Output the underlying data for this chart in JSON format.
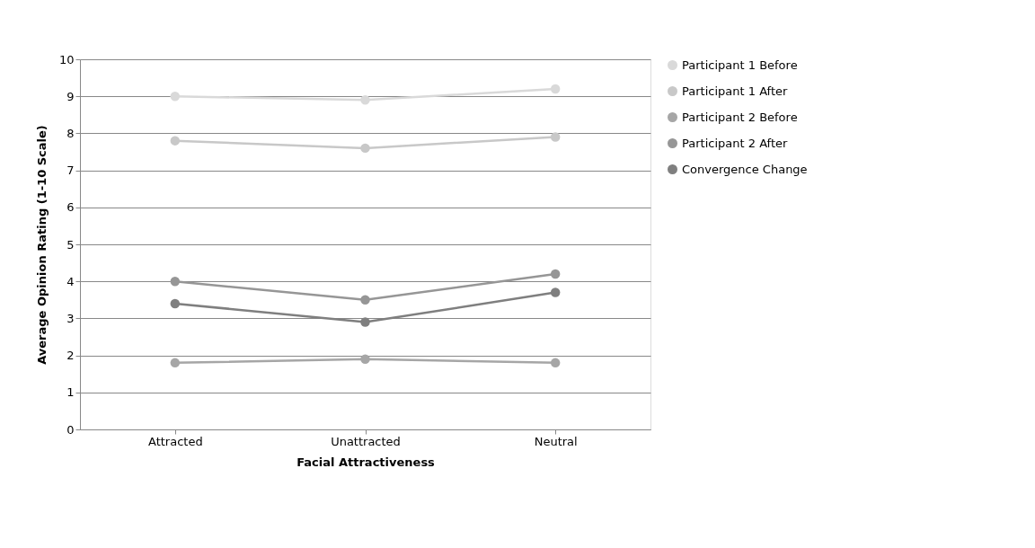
{
  "chart_data": {
    "type": "line",
    "xlabel": "Facial Attractiveness",
    "ylabel": "Average Opinion Rating (1-10 Scale)",
    "categories": [
      "Attracted",
      "Unattracted",
      "Neutral"
    ],
    "series": [
      {
        "name": "Participant 1 Before",
        "color": "#d9d9d9",
        "values": [
          9.0,
          8.9,
          9.2
        ]
      },
      {
        "name": "Participant 1 After",
        "color": "#c8c8c8",
        "values": [
          7.8,
          7.6,
          7.9
        ]
      },
      {
        "name": "Participant 2 Before",
        "color": "#a6a6a6",
        "values": [
          1.8,
          1.9,
          1.8
        ]
      },
      {
        "name": "Participant 2 After",
        "color": "#969696",
        "values": [
          4.0,
          3.5,
          4.2
        ]
      },
      {
        "name": "Convergence Change",
        "color": "#7f7f7f",
        "values": [
          3.4,
          2.9,
          3.7
        ]
      }
    ],
    "ylim": [
      0,
      10
    ],
    "yticks": [
      0,
      1,
      2,
      3,
      4,
      5,
      6,
      7,
      8,
      9,
      10
    ],
    "grid": "y",
    "legend": "right",
    "marker": "circle",
    "line_style": "solid"
  }
}
